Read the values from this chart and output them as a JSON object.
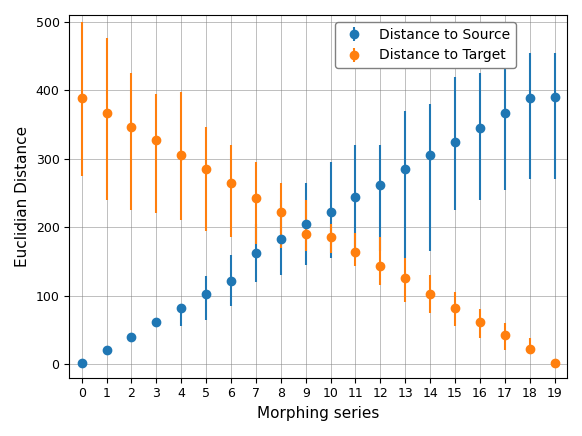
{
  "x": [
    0,
    1,
    2,
    3,
    4,
    5,
    6,
    7,
    8,
    9,
    10,
    11,
    12,
    13,
    14,
    15,
    16,
    17,
    18,
    19
  ],
  "blue_mean": [
    2,
    20,
    40,
    62,
    82,
    103,
    122,
    162,
    183,
    205,
    222,
    244,
    262,
    285,
    306,
    325,
    345,
    367,
    388,
    390
  ],
  "blue_err_low": [
    2,
    20,
    40,
    62,
    55,
    65,
    85,
    120,
    130,
    145,
    155,
    155,
    165,
    155,
    165,
    225,
    240,
    255,
    270,
    270
  ],
  "blue_err_high": [
    2,
    20,
    40,
    62,
    82,
    128,
    160,
    205,
    240,
    265,
    295,
    320,
    320,
    370,
    380,
    420,
    425,
    450,
    455,
    455
  ],
  "orange_mean": [
    388,
    367,
    347,
    327,
    305,
    285,
    265,
    243,
    222,
    190,
    185,
    163,
    143,
    125,
    102,
    82,
    62,
    42,
    22,
    2
  ],
  "orange_err_low": [
    275,
    240,
    225,
    220,
    210,
    195,
    185,
    175,
    170,
    165,
    162,
    143,
    115,
    90,
    75,
    55,
    38,
    20,
    15,
    2
  ],
  "orange_err_high": [
    500,
    477,
    425,
    395,
    398,
    347,
    320,
    295,
    265,
    240,
    205,
    192,
    185,
    155,
    130,
    105,
    80,
    60,
    38,
    2
  ],
  "blue_color": "#1f77b4",
  "orange_color": "#ff7f0e",
  "title": "",
  "xlabel": "Morphing series",
  "ylabel": "Euclidian Distance",
  "ylim": [
    -20,
    510
  ],
  "xlim": [
    -0.5,
    19.5
  ],
  "legend_source": "Distance to Source",
  "legend_target": "Distance to Target"
}
